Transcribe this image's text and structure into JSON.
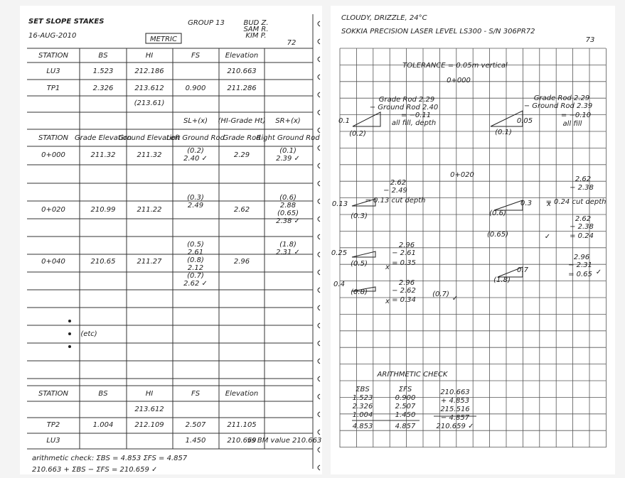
{
  "left_page": {
    "header": {
      "title": "SET SLOPE STAKES",
      "date": "16-AUG-2010",
      "units": "METRIC",
      "group": "GROUP 13",
      "crew": [
        "BUD Z.",
        "SAM R.",
        "KIM P."
      ],
      "page": "72"
    },
    "level_table": {
      "columns": [
        "STATION",
        "BS",
        "HI",
        "FS",
        "Elevation"
      ],
      "rows": [
        [
          "LU3",
          "1.523",
          "212.186",
          null,
          "210.663"
        ],
        [
          "TP1",
          "2.326",
          "213.612",
          "0.900",
          "211.286"
        ]
      ],
      "note": "(213.61)"
    },
    "stake_table": {
      "group_headers": [
        "SL+(x)",
        "(HI-Grade Ht)",
        "SR+(x)"
      ],
      "columns": [
        "STATION",
        "Grade Elevation",
        "Ground Elevation",
        "Left Ground Rod",
        "Grade Rod",
        "Right Ground Rod"
      ],
      "rows": [
        [
          "0+000",
          "211.32",
          "211.32",
          [
            "(0.2)",
            "2.40 ✓"
          ],
          "2.29",
          [
            "(0.1)",
            "2.39 ✓"
          ]
        ],
        [
          "0+020",
          "210.99",
          "211.22",
          [
            "(0.3)",
            "2.49"
          ],
          "2.62",
          [
            "(0.6)",
            "2.88",
            "(0.65)",
            "2.38 ✓"
          ]
        ],
        [
          "0+040",
          "210.65",
          "211.27",
          [
            "(0.5)",
            "2.61",
            "(0.8)",
            "2.12",
            "(0.7)",
            "2.62 ✓"
          ],
          "2.96",
          [
            "(1.8)",
            "2.31 ✓"
          ]
        ]
      ],
      "continuation": "(etc)"
    },
    "closing_table": {
      "columns": [
        "STATION",
        "BS",
        "HI",
        "FS",
        "Elevation"
      ],
      "rows": [
        [
          null,
          null,
          "213.612",
          null,
          null
        ],
        [
          "TP2",
          "1.004",
          "212.109",
          "2.507",
          "211.105"
        ],
        [
          "LU3",
          null,
          null,
          "1.450",
          "210.659"
        ]
      ],
      "note": "vs BM value 210.663"
    },
    "arithmetic_check": [
      "arithmetic check: ΣBS = 4.853   ΣFS = 4.857",
      "210.663 + ΣBS − ΣFS = 210.659 ✓"
    ]
  },
  "right_page": {
    "conditions": "CLOUDY, DRIZZLE, 24°C",
    "instrument": "SOKKIA PRECISION LASER LEVEL LS300 - S/N 306PR72",
    "page": "73",
    "notes": [
      "TOLERANCE = 0.05m vertical",
      "0+000",
      "Grade Rod 2.29",
      "− Ground Rod 2.40",
      "= −0.11",
      "all fill, depth",
      "0.1",
      "(0.2)",
      "Grade Rod 2.29",
      "− Ground Rod 2.39",
      "= −0.10",
      "all fill",
      "0.05",
      "(0.1)",
      "0+020",
      "2.62",
      "− 2.49",
      "= 0.13 cut depth",
      "0.13",
      "(0.3)",
      "2.62",
      "− 2.38",
      "= 0.24 cut depth",
      "0.3",
      "x",
      "(0.6)",
      "2.62",
      "− 2.38",
      "= 0.24",
      "(0.65)",
      "✓",
      "2.96",
      "− 2.61",
      "= 0.35",
      "0.25",
      "(0.5)",
      "x",
      "0.4",
      "(0.8)",
      "x",
      "2.96",
      "− 2.62",
      "= 0.34",
      "(0.7)",
      "✓",
      "2.96",
      "− 2.31",
      "= 0.65",
      "✓",
      "0.7",
      "(1.8)"
    ],
    "arithmetic_check": {
      "title": "ARITHMETIC CHECK",
      "columns": [
        "ΣBS",
        "ΣFS"
      ],
      "bs": [
        "1.523",
        "2.326",
        "1.004",
        "4.853"
      ],
      "fs": [
        "0.900",
        "2.507",
        "1.450",
        "4.857"
      ],
      "elevation": [
        "210.663",
        "+ 4.853",
        "215.516",
        "− 4.857",
        "210.659 ✓"
      ]
    }
  }
}
